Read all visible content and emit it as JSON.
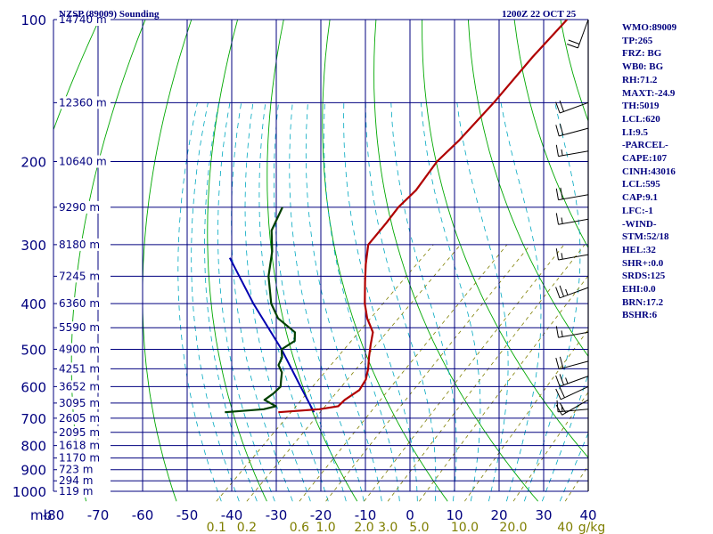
{
  "header": {
    "left_title": "NZSP (89009) Sounding",
    "right_title": "1200Z 22 OCT 25"
  },
  "indices": [
    "WMO:89009",
    "TP:265",
    "FRZ: BG",
    "WB0: BG",
    "RH:71.2",
    "MAXT:-24.9",
    "TH:5019",
    "LCL:620",
    "LI:9.5",
    "-PARCEL-",
    "CAPE:107",
    "CINH:43016",
    "LCL:595",
    "CAP:9.1",
    "LFC:-1",
    "-WIND-",
    "STM:52/18",
    "HEL:32",
    "SHR+:0.0",
    "SRDS:125",
    "EHI:0.0",
    "BRN:17.2",
    "BSHR:6"
  ],
  "colors": {
    "grid": "#00007f",
    "isotherm": "#00007f",
    "dry_adiabat": "#00a800",
    "moist_adiabat": "#00a8c0",
    "mixing_ratio": "#7f7f00",
    "temperature": "#b00000",
    "dewpoint": "#004000",
    "parcel": "#0000b0",
    "wind": "#000000"
  },
  "chart_data": {
    "type": "line",
    "chart_kind": "skew-T log-P sounding",
    "pressure_unit_label": "mb",
    "mixing_ratio_unit_label": "g/kg",
    "pressure_ticks": [
      "100",
      "200",
      "300",
      "400",
      "500",
      "600",
      "700",
      "800",
      "900",
      "1000"
    ],
    "pressure_levels": [
      100,
      200,
      300,
      400,
      500,
      600,
      700,
      800,
      900,
      1000
    ],
    "temperature_ticks": [
      "-80",
      "-70",
      "-60",
      "-50",
      "-40",
      "-30",
      "-20",
      "-10",
      "0",
      "10",
      "20",
      "30",
      "40"
    ],
    "mixing_ratio_ticks": [
      "0.1",
      "0.2",
      "0.6",
      "1.0",
      "2.0",
      "3.0",
      "5.0",
      "10.0",
      "20.0",
      "40"
    ],
    "mixing_ratio_values": [
      0.1,
      0.2,
      0.6,
      1.0,
      2.0,
      3.0,
      5.0,
      10.0,
      20.0,
      40
    ],
    "height_labels": [
      {
        "p": 100,
        "text": "14740 m"
      },
      {
        "p": 150,
        "text": "12360 m"
      },
      {
        "p": 200,
        "text": "10640 m"
      },
      {
        "p": 250,
        "text": "9290 m"
      },
      {
        "p": 300,
        "text": "8180 m"
      },
      {
        "p": 350,
        "text": "7245 m"
      },
      {
        "p": 400,
        "text": "6360 m"
      },
      {
        "p": 450,
        "text": "5590 m"
      },
      {
        "p": 500,
        "text": "4900 m"
      },
      {
        "p": 550,
        "text": "4251 m"
      },
      {
        "p": 600,
        "text": "3652 m"
      },
      {
        "p": 650,
        "text": "3095 m"
      },
      {
        "p": 700,
        "text": "2605 m"
      },
      {
        "p": 750,
        "text": "2095 m"
      },
      {
        "p": 800,
        "text": "1618 m"
      },
      {
        "p": 850,
        "text": "1170 m"
      },
      {
        "p": 900,
        "text": "723 m"
      },
      {
        "p": 950,
        "text": "294 m"
      },
      {
        "p": 1000,
        "text": "119 m"
      }
    ],
    "ylim": [
      1000,
      100
    ],
    "xlim": [
      -80,
      40
    ],
    "series": [
      {
        "key": "temperature",
        "points": [
          [
            100,
            -75
          ],
          [
            120,
            -74
          ],
          [
            150,
            -72
          ],
          [
            180,
            -71
          ],
          [
            200,
            -71
          ],
          [
            230,
            -69
          ],
          [
            250,
            -69
          ],
          [
            270,
            -68
          ],
          [
            300,
            -67
          ],
          [
            330,
            -63
          ],
          [
            360,
            -59
          ],
          [
            400,
            -54
          ],
          [
            430,
            -50
          ],
          [
            460,
            -45.5
          ],
          [
            490,
            -43
          ],
          [
            520,
            -40.5
          ],
          [
            550,
            -38
          ],
          [
            580,
            -36
          ],
          [
            610,
            -35
          ],
          [
            640,
            -36
          ],
          [
            660,
            -36
          ],
          [
            670,
            -39.5
          ],
          [
            680,
            -48
          ]
        ]
      },
      {
        "key": "dewpoint",
        "points": [
          [
            250,
            -95
          ],
          [
            280,
            -92
          ],
          [
            310,
            -87
          ],
          [
            350,
            -82
          ],
          [
            400,
            -75
          ],
          [
            430,
            -70
          ],
          [
            460,
            -63
          ],
          [
            480,
            -61
          ],
          [
            500,
            -62
          ],
          [
            520,
            -60
          ],
          [
            540,
            -59
          ],
          [
            560,
            -56.5
          ],
          [
            580,
            -55
          ],
          [
            600,
            -53.5
          ],
          [
            620,
            -53.5
          ],
          [
            640,
            -54
          ],
          [
            660,
            -50
          ],
          [
            670,
            -52
          ],
          [
            680,
            -60
          ]
        ]
      },
      {
        "key": "parcel",
        "points": [
          [
            320,
            -95
          ],
          [
            400,
            -79
          ],
          [
            500,
            -62
          ],
          [
            600,
            -49
          ],
          [
            680,
            -40
          ]
        ]
      }
    ],
    "wind_barbs": [
      {
        "p": 100,
        "dir": 200,
        "kt": 20
      },
      {
        "p": 150,
        "dir": 250,
        "kt": 20
      },
      {
        "p": 170,
        "dir": 255,
        "kt": 20
      },
      {
        "p": 190,
        "dir": 260,
        "kt": 15
      },
      {
        "p": 235,
        "dir": 260,
        "kt": 20
      },
      {
        "p": 265,
        "dir": 260,
        "kt": 15
      },
      {
        "p": 315,
        "dir": 260,
        "kt": 15
      },
      {
        "p": 370,
        "dir": 250,
        "kt": 25
      },
      {
        "p": 460,
        "dir": 260,
        "kt": 15
      },
      {
        "p": 530,
        "dir": 255,
        "kt": 20
      },
      {
        "p": 570,
        "dir": 250,
        "kt": 25
      },
      {
        "p": 600,
        "dir": 245,
        "kt": 20
      },
      {
        "p": 640,
        "dir": 240,
        "kt": 20
      },
      {
        "p": 670,
        "dir": 265,
        "kt": 15
      }
    ]
  }
}
